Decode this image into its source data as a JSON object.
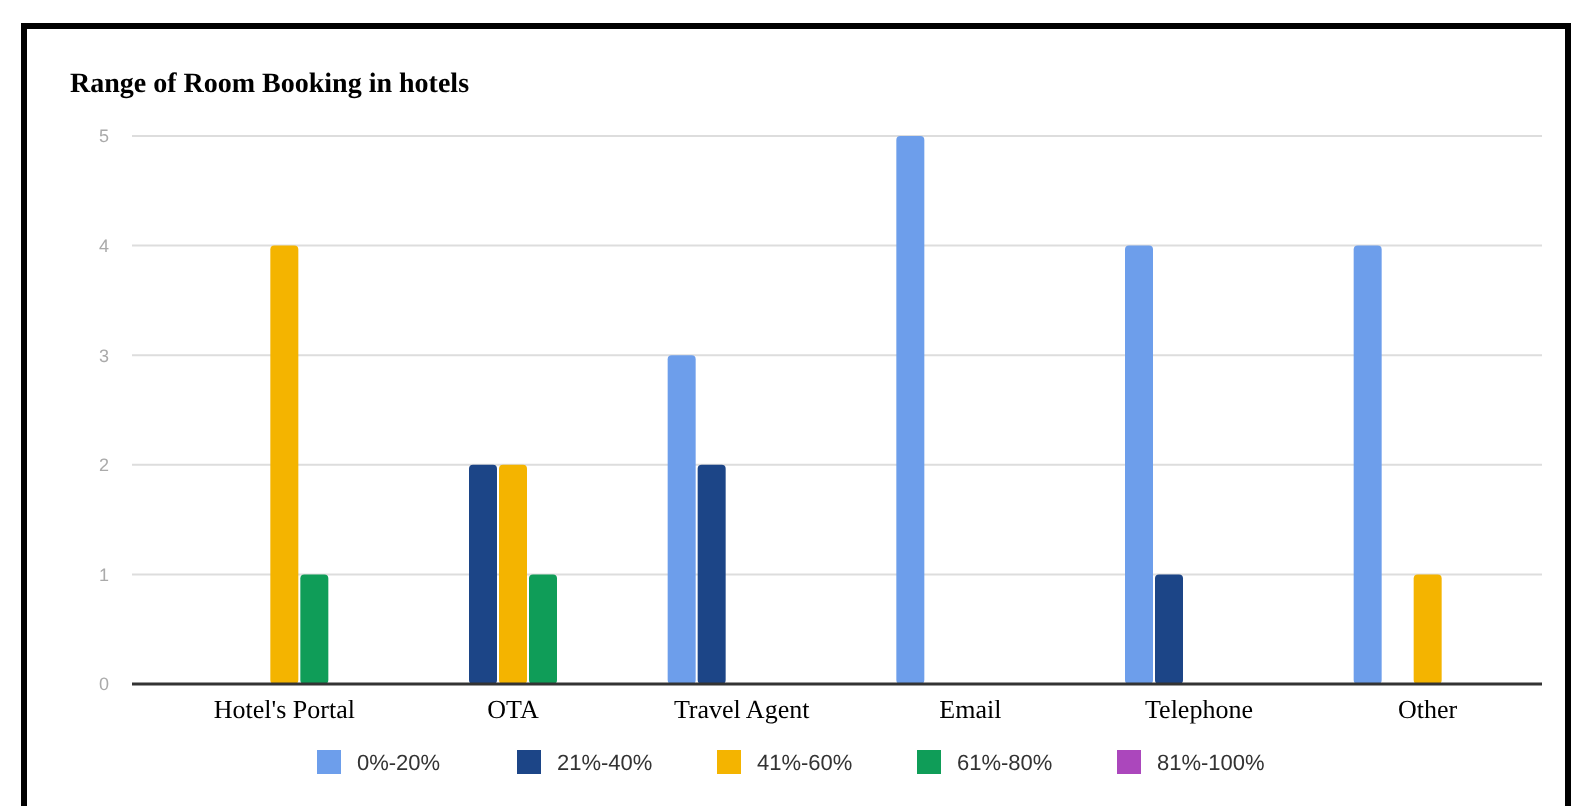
{
  "chart_data": {
    "type": "bar",
    "title": "Range of Room Booking in hotels",
    "categories": [
      "Hotel's Portal",
      "OTA",
      "Travel Agent",
      "Email",
      "Telephone",
      "Other"
    ],
    "series": [
      {
        "name": "0%-20%",
        "color": "#6d9eeb",
        "values": [
          0,
          0,
          3,
          5,
          4,
          4
        ]
      },
      {
        "name": "21%-40%",
        "color": "#1c4587",
        "values": [
          0,
          2,
          2,
          0,
          1,
          0
        ]
      },
      {
        "name": "41%-60%",
        "color": "#f4b400",
        "values": [
          4,
          2,
          0,
          0,
          0,
          1
        ]
      },
      {
        "name": "61%-80%",
        "color": "#0f9d58",
        "values": [
          1,
          1,
          0,
          0,
          0,
          0
        ]
      },
      {
        "name": "81%-100%",
        "color": "#ab47bc",
        "values": [
          0,
          0,
          0,
          0,
          0,
          0
        ]
      }
    ],
    "ylim": [
      0,
      5
    ],
    "yticks": [
      0,
      1,
      2,
      3,
      4,
      5
    ],
    "grid": "y",
    "legend": "bottom"
  }
}
